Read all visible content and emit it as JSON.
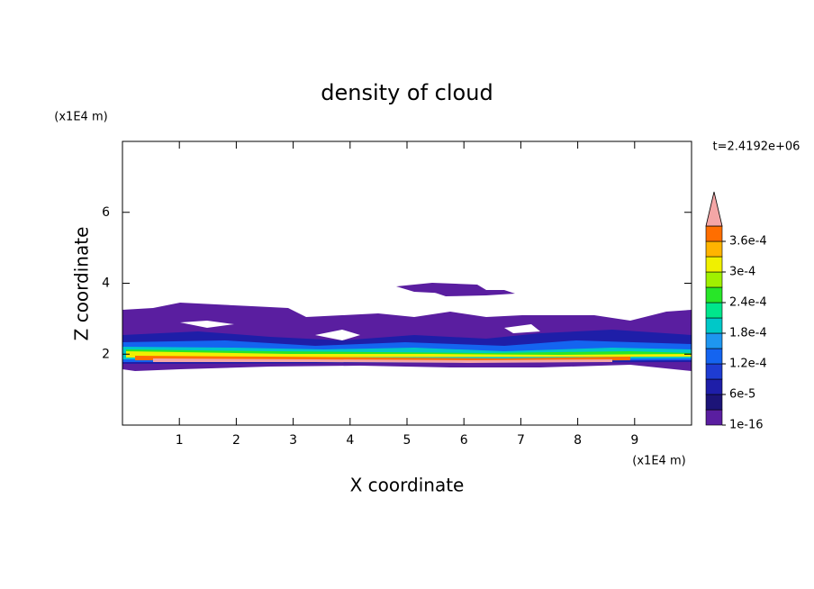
{
  "chart_data": {
    "type": "contour",
    "title": "density of cloud",
    "x_label": "X coordinate",
    "y_label": "Z coordinate",
    "x_unit": "(x1E4 m)",
    "y_unit": "(x1E4 m)",
    "annotation": "t=2.4192e+06",
    "xlim": [
      0,
      10
    ],
    "ylim": [
      0,
      8
    ],
    "xticks": [
      1,
      2,
      3,
      4,
      5,
      6,
      7,
      8,
      9
    ],
    "yticks": [
      2,
      4,
      6
    ],
    "colorbar": {
      "levels": [
        1e-16,
        3e-05,
        6e-05,
        9e-05,
        0.00012,
        0.00015,
        0.00018,
        0.00021,
        0.00024,
        0.00027,
        0.0003,
        0.00033,
        0.00036,
        0.00039
      ],
      "colors": [
        "#5a1ea0",
        "#1c1478",
        "#1e1ea8",
        "#1e3cd2",
        "#1464f0",
        "#1e96f0",
        "#00c8c8",
        "#00e68c",
        "#28e628",
        "#a0f000",
        "#f0f000",
        "#ffb400",
        "#ff6e00"
      ],
      "extend_color": "#f4a6a6",
      "ticks": [
        1e-16,
        {
          "value": 6e-05,
          "label": "6e-5"
        },
        {
          "value": 0.00012,
          "label": "1.2e-4"
        },
        {
          "value": 0.00018,
          "label": "1.8e-4"
        },
        {
          "value": 0.00024,
          "label": "2.4e-4"
        },
        {
          "value": 0.0003,
          "label": "3e-4"
        },
        {
          "value": 0.00036,
          "label": "3.6e-4"
        }
      ]
    }
  }
}
